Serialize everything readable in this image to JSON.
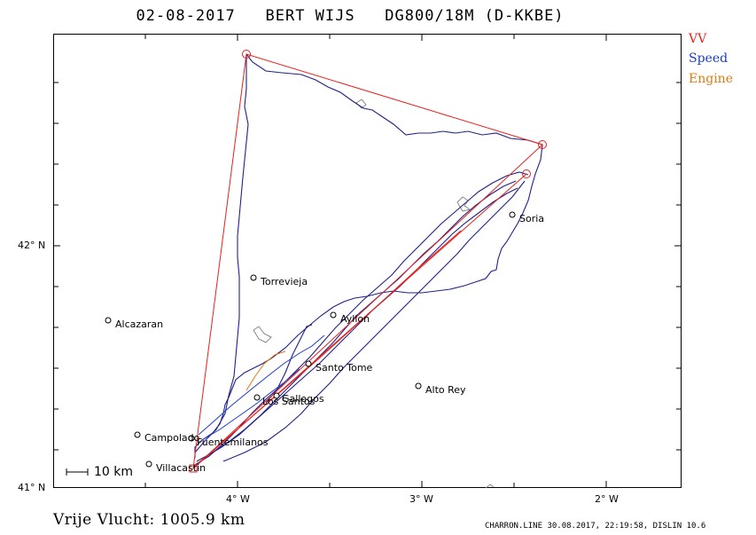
{
  "header": {
    "title": "02-08-2017   BERT WIJS   DG800/18M (D-KKBE)"
  },
  "legend": {
    "vv_label": "VV",
    "speed_label": "Speed",
    "engine_label": "Engine",
    "colors": {
      "vv": "#e8201a",
      "speed": "#1a3cd0",
      "engine": "#e07a10",
      "track": "#20208a"
    }
  },
  "axes": {
    "lat_labels": [
      "42° N",
      "41° N"
    ],
    "lon_labels": [
      "4° W",
      "3° W",
      "2° W"
    ]
  },
  "towns": [
    {
      "name": "Soria"
    },
    {
      "name": "Torrevieja"
    },
    {
      "name": "Ayllon"
    },
    {
      "name": "Alcazaran"
    },
    {
      "name": "Santo Tome"
    },
    {
      "name": "Alto Rey"
    },
    {
      "name": "Gallegos"
    },
    {
      "name": "Los Santos"
    },
    {
      "name": "Campolado"
    },
    {
      "name": "Fuentemilanos"
    },
    {
      "name": "Villacastin"
    }
  ],
  "scale": {
    "label": "10 km"
  },
  "footer": {
    "distance": "Vrije Vlucht: 1005.9 km",
    "credit": "CHARRON.LINE 30.08.2017, 22:19:58, DISLIN 10.6"
  }
}
